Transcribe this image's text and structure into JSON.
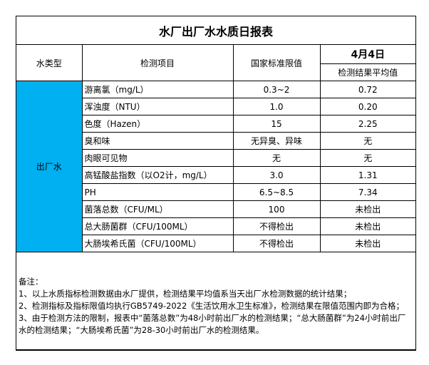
{
  "title": "水厂出厂水水质日报表",
  "header": {
    "type": "水类型",
    "item": "检测项目",
    "standard": "国家标准限值",
    "date": "4月4日",
    "result": "检测结果平均值"
  },
  "water_type": "出厂水",
  "colors": {
    "water_type_bg": "#00b0f0"
  },
  "rows": [
    {
      "item": "游离氯（mg/L）",
      "standard": "0.3~2",
      "result": "0.72"
    },
    {
      "item": "浑浊度（NTU）",
      "standard": "1.0",
      "result": "0.20"
    },
    {
      "item": "色度（Hazen）",
      "standard": "15",
      "result": "2.25"
    },
    {
      "item": "臭和味",
      "standard": "无异臭、异味",
      "result": "无"
    },
    {
      "item": "肉眼可见物",
      "standard": "无",
      "result": "无"
    },
    {
      "item": "高锰酸盐指数（以O2计，mg/L）",
      "standard": "3.0",
      "result": "1.31"
    },
    {
      "item": "PH",
      "standard": "6.5~8.5",
      "result": "7.34"
    },
    {
      "item": "菌落总数（CFU/ML）",
      "standard": "100",
      "result": "未检出"
    },
    {
      "item": "总大肠菌群（CFU/100ML）",
      "standard": "不得检出",
      "result": "未检出"
    },
    {
      "item": "大肠埃希氏菌（CFU/100ML）",
      "standard": "不得检出",
      "result": "未检出"
    }
  ],
  "notes": [
    "备注：",
    "1、以上水质指标检测数据由水厂提供，检测结果平均值系当天出厂水检测数据的统计结果；",
    "2、检测指标及指标限值均执行GB5749-2022《生活饮用水卫生标准》，检测结果在限值范围内即为合格；",
    "3、由于检测方法的限制，报表中“菌落总数”为48小时前出厂水的检测结果；“总大肠菌群”为24小时前出厂水的检测结果；“大肠埃希氏菌”为28-30小时前出厂水的检测结果。"
  ]
}
